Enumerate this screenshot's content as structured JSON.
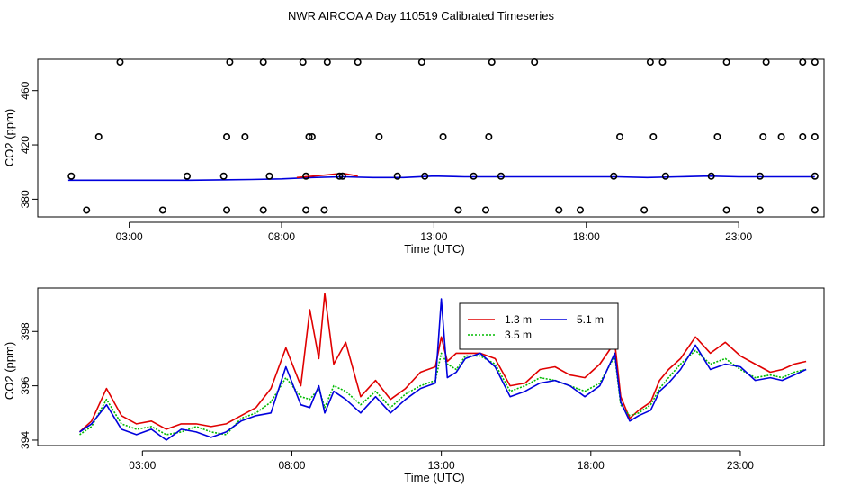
{
  "title": "NWR AIRCOA A  Day 110519  Calibrated Timeseries",
  "colors": {
    "red": "#e00000",
    "green": "#00bb00",
    "blue": "#0000dd",
    "black": "#000000"
  },
  "chart_data": [
    {
      "type": "scatter+line",
      "xlabel": "Time (UTC)",
      "ylabel": "CO2 (ppm)",
      "x_unit": "hours UTC",
      "xlim": [
        0,
        25.8
      ],
      "ylim": [
        367,
        483
      ],
      "x_ticks": [
        {
          "value": 3,
          "label": "03:00"
        },
        {
          "value": 8,
          "label": "08:00"
        },
        {
          "value": 13,
          "label": "13:00"
        },
        {
          "value": 18,
          "label": "18:00"
        },
        {
          "value": 23,
          "label": "23:00"
        }
      ],
      "y_ticks": [
        {
          "value": 380,
          "label": "380"
        },
        {
          "value": 420,
          "label": "420"
        },
        {
          "value": 460,
          "label": "460"
        }
      ],
      "grid": false,
      "points": [
        [
          1.6,
          372
        ],
        [
          4.1,
          372
        ],
        [
          6.2,
          372
        ],
        [
          7.4,
          372
        ],
        [
          8.8,
          372
        ],
        [
          9.4,
          372
        ],
        [
          13.8,
          372
        ],
        [
          14.7,
          372
        ],
        [
          17.1,
          372
        ],
        [
          17.8,
          372
        ],
        [
          19.9,
          372
        ],
        [
          22.6,
          372
        ],
        [
          23.7,
          372
        ],
        [
          25.5,
          372
        ],
        [
          1.1,
          397
        ],
        [
          4.9,
          397
        ],
        [
          6.1,
          397
        ],
        [
          7.6,
          397
        ],
        [
          8.8,
          397
        ],
        [
          9.9,
          397
        ],
        [
          10.0,
          397
        ],
        [
          11.8,
          397
        ],
        [
          12.7,
          397
        ],
        [
          14.3,
          397
        ],
        [
          15.2,
          397
        ],
        [
          18.9,
          397
        ],
        [
          20.6,
          397
        ],
        [
          22.1,
          397
        ],
        [
          23.7,
          397
        ],
        [
          25.5,
          397
        ],
        [
          2.0,
          426
        ],
        [
          6.2,
          426
        ],
        [
          6.8,
          426
        ],
        [
          9.0,
          426
        ],
        [
          8.9,
          426
        ],
        [
          11.2,
          426
        ],
        [
          13.3,
          426
        ],
        [
          14.8,
          426
        ],
        [
          19.1,
          426
        ],
        [
          20.2,
          426
        ],
        [
          22.3,
          426
        ],
        [
          23.8,
          426
        ],
        [
          24.4,
          426
        ],
        [
          25.1,
          426
        ],
        [
          25.5,
          426
        ],
        [
          2.7,
          481
        ],
        [
          6.3,
          481
        ],
        [
          7.4,
          481
        ],
        [
          8.7,
          481
        ],
        [
          9.5,
          481
        ],
        [
          10.5,
          481
        ],
        [
          12.6,
          481
        ],
        [
          14.9,
          481
        ],
        [
          16.3,
          481
        ],
        [
          20.1,
          481
        ],
        [
          20.5,
          481
        ],
        [
          22.6,
          481
        ],
        [
          23.9,
          481
        ],
        [
          25.1,
          481
        ],
        [
          25.5,
          481
        ]
      ],
      "points_note": "",
      "series": [
        {
          "name": "",
          "color": "#0000dd",
          "x": [
            1,
            3,
            5,
            7,
            8,
            9,
            10,
            11,
            12,
            13,
            14,
            15,
            16,
            17,
            18,
            19,
            20,
            21,
            22,
            23,
            24,
            25.5
          ],
          "y": [
            394,
            394,
            394,
            394.5,
            395,
            396,
            396.5,
            396,
            396,
            397,
            396.5,
            396.5,
            396.5,
            396.5,
            396.5,
            396.5,
            396,
            396.5,
            397,
            396.5,
            396.5,
            396.5
          ]
        },
        {
          "name": "",
          "color": "#e00000",
          "x": [
            8.5,
            9.3,
            10,
            10.5
          ],
          "y": [
            396,
            397.5,
            399,
            397
          ]
        }
      ]
    },
    {
      "type": "line",
      "xlabel": "Time (UTC)",
      "ylabel": "CO2 (ppm)",
      "x_unit": "hours UTC",
      "xlim": [
        -0.5,
        25.8
      ],
      "ylim": [
        393.8,
        399.6
      ],
      "x_ticks": [
        {
          "value": 3,
          "label": "03:00"
        },
        {
          "value": 8,
          "label": "08:00"
        },
        {
          "value": 13,
          "label": "13:00"
        },
        {
          "value": 18,
          "label": "18:00"
        },
        {
          "value": 23,
          "label": "23:00"
        }
      ],
      "y_ticks": [
        {
          "value": 394,
          "label": "394"
        },
        {
          "value": 396,
          "label": "396"
        },
        {
          "value": 398,
          "label": "398"
        }
      ],
      "grid": false,
      "legend": {
        "placement": "top-center",
        "entries": [
          {
            "label": "1.3 m",
            "color": "#e00000",
            "style": "solid"
          },
          {
            "label": "5.1 m",
            "color": "#0000dd",
            "style": "solid"
          },
          {
            "label": "3.5 m",
            "color": "#00bb00",
            "style": "dotted"
          }
        ]
      },
      "x": [
        0.9,
        1.3,
        1.8,
        2.3,
        2.8,
        3.3,
        3.8,
        4.3,
        4.8,
        5.3,
        5.8,
        6.3,
        6.8,
        7.3,
        7.8,
        8.3,
        8.6,
        8.9,
        9.1,
        9.4,
        9.8,
        10.3,
        10.8,
        11.3,
        11.8,
        12.3,
        12.8,
        13.0,
        13.2,
        13.5,
        13.8,
        14.3,
        14.8,
        15.3,
        15.8,
        16.3,
        16.8,
        17.3,
        17.8,
        18.3,
        18.8,
        19.0,
        19.3,
        19.6,
        20.0,
        20.3,
        20.6,
        21.0,
        21.5,
        22.0,
        22.5,
        23.0,
        23.5,
        24.0,
        24.4,
        24.8,
        25.2
      ],
      "series": [
        {
          "name": "1.3 m",
          "color": "#e00000",
          "y": [
            394.3,
            394.7,
            395.9,
            394.9,
            394.6,
            394.7,
            394.4,
            394.6,
            394.6,
            394.5,
            394.6,
            394.9,
            395.2,
            395.9,
            397.4,
            396.0,
            398.8,
            397.0,
            399.4,
            396.8,
            397.6,
            395.6,
            396.2,
            395.5,
            395.9,
            396.5,
            396.7,
            397.8,
            396.9,
            397.2,
            397.2,
            397.2,
            397.0,
            396.0,
            396.1,
            396.6,
            396.7,
            396.4,
            396.3,
            396.8,
            397.6,
            395.6,
            394.8,
            395.1,
            395.4,
            396.2,
            396.6,
            397.0,
            397.8,
            397.2,
            397.6,
            397.1,
            396.8,
            396.5,
            396.6,
            396.8,
            396.9
          ]
        },
        {
          "name": "3.5 m",
          "color": "#00bb00",
          "y": [
            394.2,
            394.5,
            395.5,
            394.6,
            394.4,
            394.5,
            394.2,
            394.3,
            394.5,
            394.3,
            394.2,
            394.8,
            395.0,
            395.4,
            396.3,
            395.6,
            395.5,
            395.9,
            395.2,
            396.0,
            395.8,
            395.3,
            395.8,
            395.2,
            395.7,
            396.0,
            396.2,
            397.2,
            396.8,
            396.6,
            397.1,
            397.1,
            396.8,
            395.8,
            396.0,
            396.3,
            396.2,
            396.0,
            395.8,
            396.1,
            397.1,
            395.3,
            394.9,
            395.0,
            395.3,
            395.9,
            396.3,
            396.8,
            397.3,
            396.8,
            397.0,
            396.6,
            396.3,
            396.4,
            396.3,
            396.5,
            396.6
          ]
        },
        {
          "name": "5.1 m",
          "color": "#0000dd",
          "y": [
            394.3,
            394.6,
            395.3,
            394.4,
            394.2,
            394.4,
            394.0,
            394.4,
            394.3,
            394.1,
            394.3,
            394.7,
            394.9,
            395.0,
            396.7,
            395.3,
            395.2,
            396.0,
            395.0,
            395.8,
            395.5,
            395.0,
            395.6,
            395.0,
            395.5,
            395.9,
            396.1,
            399.2,
            396.3,
            396.5,
            397.0,
            397.2,
            396.7,
            395.6,
            395.8,
            396.1,
            396.2,
            396.0,
            395.6,
            396.0,
            397.2,
            395.4,
            394.7,
            394.9,
            395.1,
            395.8,
            396.1,
            396.6,
            397.5,
            396.6,
            396.8,
            396.7,
            396.2,
            396.3,
            396.2,
            396.4,
            396.6
          ]
        }
      ]
    }
  ]
}
